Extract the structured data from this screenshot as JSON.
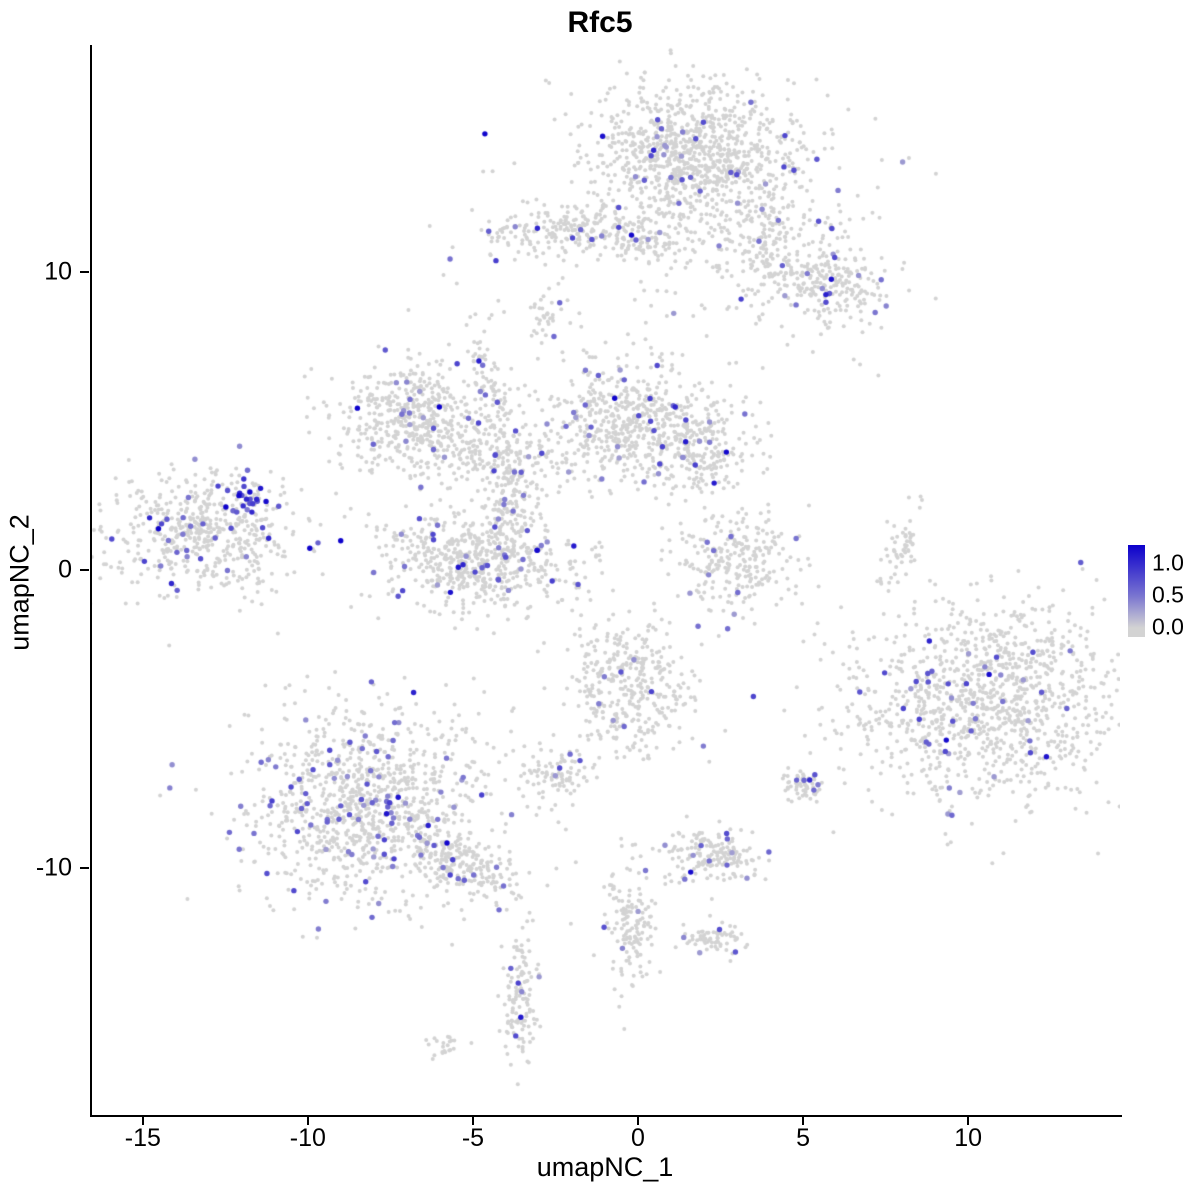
{
  "chart_data": {
    "type": "scatter",
    "title": "Rfc5",
    "xlabel": "umapNC_1",
    "ylabel": "umapNC_2",
    "xlim": [
      -16.6,
      14.6
    ],
    "ylim": [
      -18.3,
      17.6
    ],
    "x_ticks": [
      {
        "label": "-15",
        "value": -15
      },
      {
        "label": "-10",
        "value": -10
      },
      {
        "label": "-5",
        "value": -5
      },
      {
        "label": "0",
        "value": 0
      },
      {
        "label": "5",
        "value": 5
      },
      {
        "label": "10",
        "value": 10
      }
    ],
    "y_ticks": [
      {
        "label": "10",
        "value": 10
      },
      {
        "label": "0",
        "value": 0
      },
      {
        "label": "-10",
        "value": -10
      }
    ],
    "legend": {
      "labels": [
        "1.0",
        "0.5",
        "0.0"
      ],
      "values": [
        1.0,
        0.5,
        0.0
      ]
    },
    "colors": {
      "low": "#d3d3d3",
      "high": "#0c00cc"
    },
    "point_radius_base": 2.0,
    "point_radius_expressed": 2.7,
    "clusters": [
      {
        "name": "top-core",
        "cx": 1.6,
        "cy": 14.0,
        "sx": 1.5,
        "sy": 1.1,
        "rot": 0,
        "n": 850,
        "frac": 0.035
      },
      {
        "name": "top-halo",
        "cx": 2.2,
        "cy": 13.2,
        "sx": 2.4,
        "sy": 1.9,
        "rot": 0,
        "n": 220,
        "frac": 0.02
      },
      {
        "name": "top-arm",
        "cx": 4.3,
        "cy": 10.8,
        "sx": 1.3,
        "sy": 1.0,
        "rot": -35,
        "n": 260,
        "frac": 0.05
      },
      {
        "name": "top-arm-blob",
        "cx": 5.9,
        "cy": 9.6,
        "sx": 0.75,
        "sy": 0.55,
        "rot": 0,
        "n": 160,
        "frac": 0.05
      },
      {
        "name": "upper-band",
        "cx": -1.9,
        "cy": 11.3,
        "sx": 1.45,
        "sy": 0.45,
        "rot": 0,
        "n": 230,
        "frac": 0.06
      },
      {
        "name": "upper-band-right",
        "cx": 0.3,
        "cy": 11.0,
        "sx": 0.5,
        "sy": 0.4,
        "rot": 0,
        "n": 50,
        "frac": 0.04
      },
      {
        "name": "tiny-drip",
        "cx": -2.8,
        "cy": 8.5,
        "sx": 0.18,
        "sy": 0.55,
        "rot": 0,
        "n": 30,
        "frac": 0.05
      },
      {
        "name": "mid-left",
        "cx": -6.8,
        "cy": 5.1,
        "sx": 1.25,
        "sy": 0.95,
        "rot": 0,
        "n": 480,
        "frac": 0.05
      },
      {
        "name": "mid-left-arm",
        "cx": -5.3,
        "cy": 3.9,
        "sx": 0.6,
        "sy": 0.5,
        "rot": 0,
        "n": 90,
        "frac": 0.05
      },
      {
        "name": "diag-strand",
        "cx": -4.3,
        "cy": 5.3,
        "sx": 0.28,
        "sy": 1.6,
        "rot": 12,
        "n": 130,
        "frac": 0.07
      },
      {
        "name": "mid-main",
        "cx": -0.3,
        "cy": 5.0,
        "sx": 1.3,
        "sy": 1.05,
        "rot": 0,
        "n": 520,
        "frac": 0.05
      },
      {
        "name": "mid-right-lobe",
        "cx": 1.9,
        "cy": 4.1,
        "sx": 0.85,
        "sy": 0.75,
        "rot": 0,
        "n": 220,
        "frac": 0.05
      },
      {
        "name": "center-tail",
        "cx": -3.8,
        "cy": 2.4,
        "sx": 0.4,
        "sy": 1.0,
        "rot": 0,
        "n": 130,
        "frac": 0.04
      },
      {
        "name": "center-u",
        "cx": -4.9,
        "cy": 0.3,
        "sx": 1.5,
        "sy": 0.85,
        "rot": 0,
        "n": 600,
        "frac": 0.06
      },
      {
        "name": "left-cluster",
        "cx": -13.3,
        "cy": 1.3,
        "sx": 1.5,
        "sy": 1.05,
        "rot": 0,
        "n": 560,
        "frac": 0.06
      },
      {
        "name": "left-hotspot",
        "cx": -11.9,
        "cy": 2.4,
        "sx": 0.5,
        "sy": 0.35,
        "rot": 0,
        "n": 40,
        "frac": 0.5
      },
      {
        "name": "midright-crescent",
        "cx": 3.0,
        "cy": 0.3,
        "sx": 0.95,
        "sy": 0.85,
        "rot": 0,
        "n": 260,
        "frac": 0.03
      },
      {
        "name": "thin-strand-right",
        "cx": 7.95,
        "cy": 0.7,
        "sx": 0.22,
        "sy": 0.75,
        "rot": -15,
        "n": 60,
        "frac": 0.0
      },
      {
        "name": "right-big",
        "cx": 10.5,
        "cy": -4.5,
        "sx": 2.1,
        "sy": 1.65,
        "rot": 0,
        "n": 1150,
        "frac": 0.035
      },
      {
        "name": "mid-lower",
        "cx": -0.3,
        "cy": -4.1,
        "sx": 0.95,
        "sy": 1.15,
        "rot": 0,
        "n": 380,
        "frac": 0.03
      },
      {
        "name": "small-blob-center",
        "cx": -2.5,
        "cy": -6.9,
        "sx": 0.5,
        "sy": 0.45,
        "rot": 0,
        "n": 90,
        "frac": 0.05
      },
      {
        "name": "bottom-left",
        "cx": -8.2,
        "cy": -7.9,
        "sx": 1.9,
        "sy": 1.6,
        "rot": 0,
        "n": 1050,
        "frac": 0.08
      },
      {
        "name": "bottom-left-arm",
        "cx": -5.3,
        "cy": -9.9,
        "sx": 1.1,
        "sy": 0.45,
        "rot": -25,
        "n": 220,
        "frac": 0.06
      },
      {
        "name": "small-c1",
        "cx": 2.3,
        "cy": -9.6,
        "sx": 0.7,
        "sy": 0.45,
        "rot": 0,
        "n": 170,
        "frac": 0.08
      },
      {
        "name": "small-c2",
        "cx": 5.0,
        "cy": -7.2,
        "sx": 0.33,
        "sy": 0.3,
        "rot": 0,
        "n": 55,
        "frac": 0.1
      },
      {
        "name": "strand-bottom",
        "cx": -0.2,
        "cy": -11.9,
        "sx": 0.35,
        "sy": 1.15,
        "rot": 0,
        "n": 150,
        "frac": 0.04
      },
      {
        "name": "small-c3",
        "cx": 2.4,
        "cy": -12.4,
        "sx": 0.45,
        "sy": 0.28,
        "rot": 0,
        "n": 70,
        "frac": 0.04
      },
      {
        "name": "tail-strand",
        "cx": -3.6,
        "cy": -14.3,
        "sx": 0.28,
        "sy": 1.05,
        "rot": 0,
        "n": 130,
        "frac": 0.05
      },
      {
        "name": "tiny-bottom",
        "cx": -6.0,
        "cy": -16.0,
        "sx": 0.3,
        "sy": 0.22,
        "rot": 0,
        "n": 22,
        "frac": 0.0
      },
      {
        "name": "sparse-scatter",
        "cx": 0.5,
        "cy": 9.0,
        "sx": 3.0,
        "sy": 2.0,
        "rot": 0,
        "n": 90,
        "frac": 0.05
      },
      {
        "name": "lone-right",
        "cx": 6.7,
        "cy": 6.9,
        "sx": 0.1,
        "sy": 0.1,
        "rot": 0,
        "n": 2,
        "frac": 0.0
      },
      {
        "name": "stray-mid",
        "cx": -2.6,
        "cy": 3.6,
        "sx": 0.4,
        "sy": 0.5,
        "rot": 0,
        "n": 25,
        "frac": 0.0
      }
    ]
  }
}
